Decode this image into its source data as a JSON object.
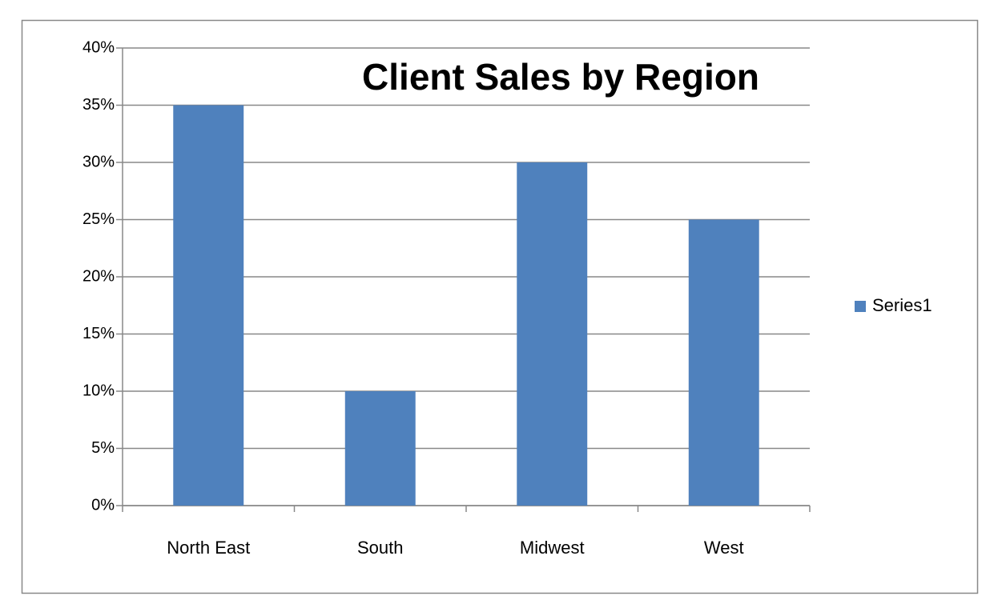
{
  "chart_data": {
    "type": "bar",
    "title": "Client Sales by Region",
    "categories": [
      "North East",
      "South",
      "Midwest",
      "West"
    ],
    "series": [
      {
        "name": "Series1",
        "color": "#4f81bd",
        "values": [
          35,
          10,
          30,
          25
        ]
      }
    ],
    "ylim": [
      0,
      40
    ],
    "yticks": [
      {
        "value": 0,
        "label": "0%"
      },
      {
        "value": 5,
        "label": "5%"
      },
      {
        "value": 10,
        "label": "10%"
      },
      {
        "value": 15,
        "label": "15%"
      },
      {
        "value": 20,
        "label": "20%"
      },
      {
        "value": 25,
        "label": "25%"
      },
      {
        "value": 30,
        "label": "30%"
      },
      {
        "value": 35,
        "label": "35%"
      },
      {
        "value": 40,
        "label": "40%"
      }
    ],
    "grid": true,
    "legend": "right"
  }
}
